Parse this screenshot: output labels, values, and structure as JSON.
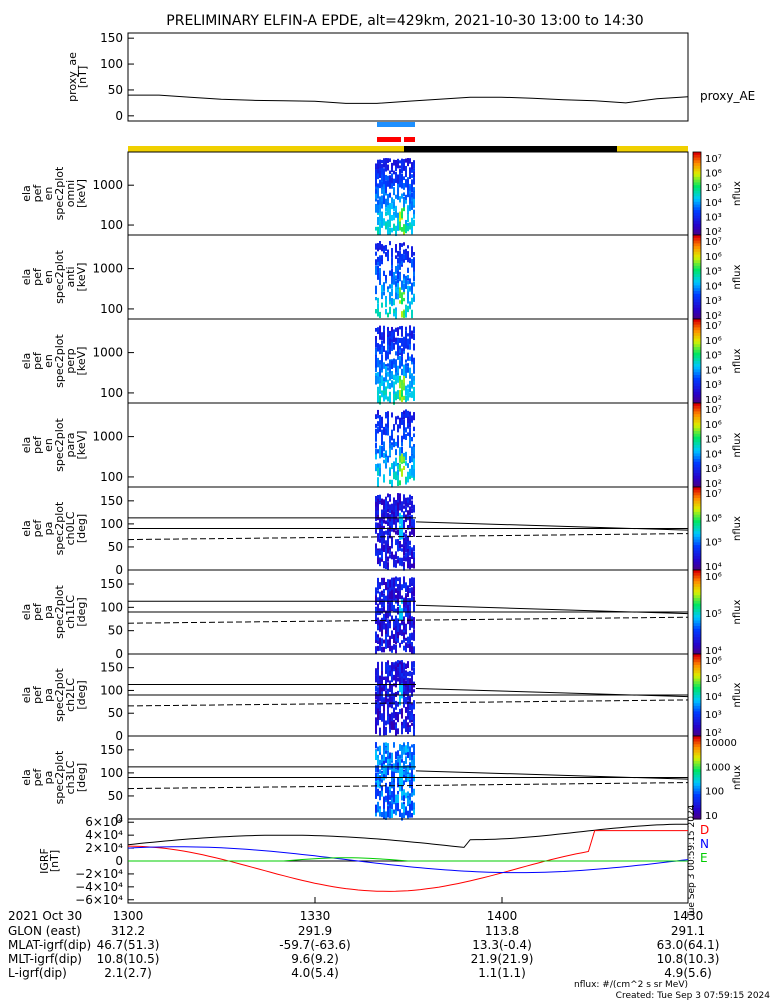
{
  "title": "PRELIMINARY ELFIN-A EPDE, alt=429km, 2021-10-30 13:00 to 14:30",
  "chart_data": [
    {
      "type": "line",
      "panel": "proxy_ae",
      "ylabel": [
        "proxy_ae",
        "[nT]"
      ],
      "legend": "proxy_AE",
      "yticks": [
        "150",
        "100",
        "50",
        "0"
      ],
      "ylim": [
        -10,
        160
      ],
      "x": [
        0,
        5,
        10,
        15,
        20,
        25,
        30,
        35,
        40,
        45,
        50,
        55,
        60,
        65,
        70,
        75,
        80,
        85,
        90
      ],
      "y": [
        40,
        40,
        36,
        32,
        30,
        29,
        28,
        24,
        24,
        28,
        32,
        36,
        36,
        34,
        31,
        29,
        25,
        33,
        37
      ]
    },
    {
      "type": "heatmap",
      "panel": "omni",
      "ylabel": [
        "ela",
        "pef",
        "en",
        "spec2plot",
        "omni",
        "[keV]"
      ],
      "yticks": [
        "1000",
        "100"
      ],
      "colorbar": {
        "label": "nflux",
        "ticks": [
          "10⁷",
          "10⁶",
          "10⁵",
          "10⁴",
          "10³",
          "10²"
        ]
      }
    },
    {
      "type": "heatmap",
      "panel": "anti",
      "ylabel": [
        "ela",
        "pef",
        "en",
        "spec2plot",
        "anti",
        "[keV]"
      ],
      "yticks": [
        "1000",
        "100"
      ],
      "colorbar": {
        "label": "nflux",
        "ticks": [
          "10⁷",
          "10⁶",
          "10⁵",
          "10⁴",
          "10³",
          "10²"
        ]
      }
    },
    {
      "type": "heatmap",
      "panel": "perp",
      "ylabel": [
        "ela",
        "pef",
        "en",
        "spec2plot",
        "perp",
        "[keV]"
      ],
      "yticks": [
        "1000",
        "100"
      ],
      "colorbar": {
        "label": "nflux",
        "ticks": [
          "10⁷",
          "10⁶",
          "10⁵",
          "10⁴",
          "10³",
          "10²"
        ]
      }
    },
    {
      "type": "heatmap",
      "panel": "para",
      "ylabel": [
        "ela",
        "pef",
        "en",
        "spec2plot",
        "para",
        "[keV]"
      ],
      "yticks": [
        "1000",
        "100"
      ],
      "colorbar": {
        "label": "nflux",
        "ticks": [
          "10⁷",
          "10⁶",
          "10⁵",
          "10⁴",
          "10³",
          "10²"
        ]
      }
    },
    {
      "type": "heatmap",
      "panel": "ch0LC",
      "ylabel": [
        "ela",
        "pef",
        "pa",
        "spec2plot",
        "ch0LC",
        "[deg]"
      ],
      "yticks": [
        "150",
        "100",
        "50",
        "0"
      ],
      "colorbar": {
        "label": "nflux",
        "ticks": [
          "10⁷",
          "10⁶",
          "10⁵",
          "10⁴"
        ]
      }
    },
    {
      "type": "heatmap",
      "panel": "ch1LC",
      "ylabel": [
        "ela",
        "pef",
        "pa",
        "spec2plot",
        "ch1LC",
        "[deg]"
      ],
      "yticks": [
        "150",
        "100",
        "50",
        "0"
      ],
      "colorbar": {
        "label": "nflux",
        "ticks": [
          "10⁶",
          "10⁵",
          "10⁴"
        ]
      }
    },
    {
      "type": "heatmap",
      "panel": "ch2LC",
      "ylabel": [
        "ela",
        "pef",
        "pa",
        "spec2plot",
        "ch2LC",
        "[deg]"
      ],
      "yticks": [
        "150",
        "100",
        "50",
        "0"
      ],
      "colorbar": {
        "label": "nflux",
        "ticks": [
          "10⁶",
          "10⁵",
          "10⁴",
          "10³",
          "10²"
        ]
      }
    },
    {
      "type": "heatmap",
      "panel": "ch3LC",
      "ylabel": [
        "ela",
        "pef",
        "pa",
        "spec2plot",
        "ch3LC",
        "[deg]"
      ],
      "yticks": [
        "150",
        "100",
        "50",
        "0"
      ],
      "colorbar": {
        "label": "nflux",
        "ticks": [
          "10000",
          "1000",
          "100",
          "10"
        ]
      }
    },
    {
      "type": "line",
      "panel": "igrf",
      "ylabel": [
        "IGRF",
        "[nT]"
      ],
      "yticks": [
        "6×10⁴",
        "4×10⁴",
        "2×10⁴",
        "0",
        "−2×10⁴",
        "−4×10⁴",
        "−6×10⁴"
      ],
      "legend": [
        "D",
        "N",
        "E"
      ],
      "series_colors": [
        "#ff0000",
        "#0000ff",
        "#00cc00"
      ],
      "timestamp": "Tue Sep  3 00:59:15 2024"
    }
  ],
  "footer": {
    "xticks": [
      "1300",
      "1330",
      "1400",
      "1430"
    ],
    "date": "2021 Oct 30",
    "rows": [
      {
        "label": "GLON (east)",
        "values": [
          "312.2",
          "291.9",
          "113.8",
          "291.1"
        ]
      },
      {
        "label": "MLAT-igrf(dip)",
        "values": [
          "46.7(51.3)",
          "-59.7(-63.6)",
          "13.3(-0.4)",
          "63.0(64.1)"
        ]
      },
      {
        "label": "MLT-igrf(dip)",
        "values": [
          "10.8(10.5)",
          "9.6(9.2)",
          "21.9(21.9)",
          "10.8(10.3)"
        ]
      },
      {
        "label": "L-igrf(dip)",
        "values": [
          "2.1(2.7)",
          "4.0(5.4)",
          "1.1(1.1)",
          "4.9(5.6)"
        ]
      }
    ],
    "units": "nflux: #/(cm^2 s sr MeV)",
    "created": "Created: Tue Sep  3 07:59:15 2024"
  },
  "colors": {
    "sunlit": "#f0d000",
    "eclipse": "#000000",
    "ifm": "#1e90ff",
    "sci": "#ff0000"
  }
}
